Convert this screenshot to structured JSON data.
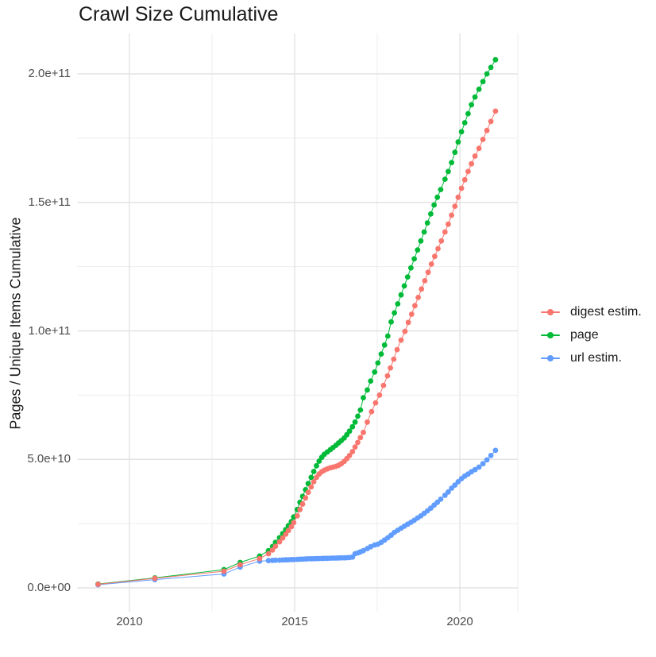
{
  "title": "Crawl Size Cumulative",
  "y_axis": {
    "title": "Pages / Unique Items Cumulative",
    "tick_labels": [
      "0.0e+00",
      "5.0e+10",
      "1.0e+11",
      "1.5e+11",
      "2.0e+11"
    ],
    "tick_values_billions": [
      0,
      50,
      100,
      150,
      200
    ]
  },
  "x_axis": {
    "tick_labels": [
      "2010",
      "2015",
      "2020"
    ],
    "tick_values": [
      2010,
      2015,
      2020
    ]
  },
  "legend": {
    "items": [
      {
        "label": "digest estim.",
        "color": "#F8766D"
      },
      {
        "label": "page",
        "color": "#00BA38"
      },
      {
        "label": "url estim.",
        "color": "#619CFF"
      }
    ]
  },
  "chart_data": {
    "type": "line",
    "marker": "filled-circle",
    "title": "Crawl Size Cumulative",
    "xlabel": "",
    "ylabel": "Pages / Unique Items Cumulative",
    "x_unit": "decimal year",
    "y_unit": "pages / unique items (billions, 1e9)",
    "xlim": [
      2008.4,
      2021.8
    ],
    "ylim": [
      0,
      216000000000.0
    ],
    "x_ticks": [
      2010,
      2015,
      2020
    ],
    "y_tick_labels": [
      "0.0e+00",
      "5.0e+10",
      "1.0e+11",
      "1.5e+11",
      "2.0e+11"
    ],
    "grid": "major and minor, light gray on white",
    "legend_position": "right",
    "draw_order": [
      "page",
      "url estim.",
      "digest estim."
    ],
    "series": [
      {
        "name": "digest estim.",
        "color": "#F8766D",
        "points_year_billions": [
          [
            2009.05,
            1.4
          ],
          [
            2010.77,
            3.7
          ],
          [
            2012.86,
            6.5
          ],
          [
            2013.35,
            9.0
          ],
          [
            2013.94,
            11.4
          ],
          [
            2014.21,
            13.3
          ],
          [
            2014.33,
            14.7
          ],
          [
            2014.42,
            16.2
          ],
          [
            2014.54,
            17.9
          ],
          [
            2014.64,
            19.4
          ],
          [
            2014.73,
            20.9
          ],
          [
            2014.81,
            22.3
          ],
          [
            2014.9,
            23.8
          ],
          [
            2014.97,
            25.4
          ],
          [
            2015.08,
            28.0
          ],
          [
            2015.16,
            30.5
          ],
          [
            2015.24,
            32.6
          ],
          [
            2015.33,
            35.0
          ],
          [
            2015.41,
            37.2
          ],
          [
            2015.5,
            39.3
          ],
          [
            2015.58,
            41.3
          ],
          [
            2015.66,
            43.0
          ],
          [
            2015.74,
            44.3
          ],
          [
            2015.82,
            45.2
          ],
          [
            2015.9,
            45.8
          ],
          [
            2015.99,
            46.3
          ],
          [
            2016.08,
            46.7
          ],
          [
            2016.16,
            47.0
          ],
          [
            2016.25,
            47.3
          ],
          [
            2016.33,
            47.7
          ],
          [
            2016.41,
            48.3
          ],
          [
            2016.5,
            49.2
          ],
          [
            2016.58,
            50.3
          ],
          [
            2016.66,
            51.5
          ],
          [
            2016.75,
            53.0
          ],
          [
            2016.83,
            54.8
          ],
          [
            2016.91,
            56.6
          ],
          [
            2016.99,
            58.5
          ],
          [
            2017.08,
            60.5
          ],
          [
            2017.2,
            64.5
          ],
          [
            2017.33,
            68.6
          ],
          [
            2017.45,
            72.0
          ],
          [
            2017.57,
            75.0
          ],
          [
            2017.69,
            78.8
          ],
          [
            2017.81,
            82.5
          ],
          [
            2017.9,
            85.6
          ],
          [
            2018.0,
            89.0
          ],
          [
            2018.1,
            92.7
          ],
          [
            2018.22,
            96.4
          ],
          [
            2018.34,
            99.8
          ],
          [
            2018.44,
            103.3
          ],
          [
            2018.54,
            106.5
          ],
          [
            2018.64,
            109.8
          ],
          [
            2018.74,
            113.0
          ],
          [
            2018.84,
            116.3
          ],
          [
            2018.94,
            119.5
          ],
          [
            2019.04,
            122.8
          ],
          [
            2019.14,
            126.0
          ],
          [
            2019.24,
            129.0
          ],
          [
            2019.34,
            132.0
          ],
          [
            2019.44,
            135.0
          ],
          [
            2019.55,
            138.5
          ],
          [
            2019.65,
            141.5
          ],
          [
            2019.75,
            145.0
          ],
          [
            2019.85,
            148.5
          ],
          [
            2019.95,
            152.0
          ],
          [
            2020.05,
            155.5
          ],
          [
            2020.15,
            158.8
          ],
          [
            2020.25,
            162.0
          ],
          [
            2020.35,
            165.0
          ],
          [
            2020.46,
            168.0
          ],
          [
            2020.58,
            171.0
          ],
          [
            2020.7,
            174.5
          ],
          [
            2020.82,
            178.0
          ],
          [
            2020.94,
            181.5
          ],
          [
            2021.08,
            185.5
          ]
        ]
      },
      {
        "name": "page",
        "color": "#00BA38",
        "points_year_billions": [
          [
            2009.05,
            1.5
          ],
          [
            2010.77,
            3.9
          ],
          [
            2012.86,
            7.1
          ],
          [
            2013.35,
            9.9
          ],
          [
            2013.94,
            12.4
          ],
          [
            2014.21,
            14.5
          ],
          [
            2014.33,
            16.1
          ],
          [
            2014.42,
            17.7
          ],
          [
            2014.54,
            19.5
          ],
          [
            2014.64,
            21.1
          ],
          [
            2014.73,
            22.7
          ],
          [
            2014.81,
            24.2
          ],
          [
            2014.9,
            25.8
          ],
          [
            2014.97,
            27.6
          ],
          [
            2015.08,
            30.5
          ],
          [
            2015.16,
            33.3
          ],
          [
            2015.24,
            35.6
          ],
          [
            2015.33,
            38.2
          ],
          [
            2015.41,
            40.6
          ],
          [
            2015.5,
            43.0
          ],
          [
            2015.58,
            45.3
          ],
          [
            2015.66,
            47.5
          ],
          [
            2015.74,
            49.3
          ],
          [
            2015.82,
            50.8
          ],
          [
            2015.9,
            52.0
          ],
          [
            2015.99,
            52.9
          ],
          [
            2016.08,
            53.8
          ],
          [
            2016.16,
            54.6
          ],
          [
            2016.25,
            55.5
          ],
          [
            2016.33,
            56.4
          ],
          [
            2016.41,
            57.3
          ],
          [
            2016.5,
            58.3
          ],
          [
            2016.58,
            59.6
          ],
          [
            2016.66,
            61.0
          ],
          [
            2016.75,
            62.7
          ],
          [
            2016.83,
            64.5
          ],
          [
            2016.91,
            66.8
          ],
          [
            2016.99,
            69.2
          ],
          [
            2017.08,
            74.0
          ],
          [
            2017.2,
            77.0
          ],
          [
            2017.3,
            80.5
          ],
          [
            2017.42,
            84.0
          ],
          [
            2017.52,
            87.5
          ],
          [
            2017.62,
            91.0
          ],
          [
            2017.72,
            94.5
          ],
          [
            2017.82,
            98.0
          ],
          [
            2017.92,
            103.5
          ],
          [
            2018.02,
            107.0
          ],
          [
            2018.12,
            110.5
          ],
          [
            2018.22,
            114.0
          ],
          [
            2018.32,
            117.5
          ],
          [
            2018.42,
            121.0
          ],
          [
            2018.52,
            124.5
          ],
          [
            2018.62,
            128.0
          ],
          [
            2018.72,
            131.5
          ],
          [
            2018.82,
            135.0
          ],
          [
            2018.92,
            138.5
          ],
          [
            2019.02,
            142.0
          ],
          [
            2019.12,
            145.5
          ],
          [
            2019.22,
            149.0
          ],
          [
            2019.32,
            152.0
          ],
          [
            2019.42,
            155.0
          ],
          [
            2019.55,
            159.0
          ],
          [
            2019.65,
            162.0
          ],
          [
            2019.75,
            165.5
          ],
          [
            2019.85,
            169.5
          ],
          [
            2019.95,
            173.5
          ],
          [
            2020.05,
            177.5
          ],
          [
            2020.15,
            181.0
          ],
          [
            2020.25,
            184.5
          ],
          [
            2020.35,
            188.0
          ],
          [
            2020.46,
            191.0
          ],
          [
            2020.58,
            194.0
          ],
          [
            2020.7,
            197.0
          ],
          [
            2020.82,
            200.0
          ],
          [
            2020.94,
            202.5
          ],
          [
            2021.08,
            205.5
          ]
        ]
      },
      {
        "name": "url estim.",
        "color": "#619CFF",
        "points_year_billions": [
          [
            2009.05,
            1.2
          ],
          [
            2010.77,
            3.2
          ],
          [
            2012.86,
            5.4
          ],
          [
            2013.35,
            8.1
          ],
          [
            2013.94,
            10.4
          ],
          [
            2014.21,
            10.6
          ],
          [
            2014.33,
            10.7
          ],
          [
            2014.42,
            10.75
          ],
          [
            2014.54,
            10.8
          ],
          [
            2014.64,
            10.85
          ],
          [
            2014.73,
            10.9
          ],
          [
            2014.81,
            10.95
          ],
          [
            2014.9,
            11.0
          ],
          [
            2014.97,
            11.0
          ],
          [
            2015.08,
            11.1
          ],
          [
            2015.16,
            11.15
          ],
          [
            2015.24,
            11.2
          ],
          [
            2015.33,
            11.25
          ],
          [
            2015.41,
            11.3
          ],
          [
            2015.5,
            11.3
          ],
          [
            2015.58,
            11.35
          ],
          [
            2015.66,
            11.4
          ],
          [
            2015.74,
            11.4
          ],
          [
            2015.82,
            11.45
          ],
          [
            2015.9,
            11.5
          ],
          [
            2015.99,
            11.5
          ],
          [
            2016.08,
            11.55
          ],
          [
            2016.16,
            11.6
          ],
          [
            2016.25,
            11.6
          ],
          [
            2016.33,
            11.65
          ],
          [
            2016.41,
            11.7
          ],
          [
            2016.5,
            11.7
          ],
          [
            2016.58,
            11.75
          ],
          [
            2016.66,
            11.8
          ],
          [
            2016.75,
            12.0
          ],
          [
            2016.83,
            13.3
          ],
          [
            2016.91,
            13.6
          ],
          [
            2016.99,
            14.0
          ],
          [
            2017.08,
            14.5
          ],
          [
            2017.2,
            15.3
          ],
          [
            2017.3,
            16.0
          ],
          [
            2017.42,
            16.7
          ],
          [
            2017.52,
            17.0
          ],
          [
            2017.62,
            17.7
          ],
          [
            2017.72,
            18.6
          ],
          [
            2017.82,
            19.5
          ],
          [
            2017.92,
            20.5
          ],
          [
            2018.02,
            21.6
          ],
          [
            2018.12,
            22.4
          ],
          [
            2018.22,
            23.2
          ],
          [
            2018.32,
            24.0
          ],
          [
            2018.42,
            24.8
          ],
          [
            2018.52,
            25.5
          ],
          [
            2018.62,
            26.3
          ],
          [
            2018.72,
            27.2
          ],
          [
            2018.82,
            28.0
          ],
          [
            2018.92,
            29.0
          ],
          [
            2019.02,
            30.0
          ],
          [
            2019.12,
            31.0
          ],
          [
            2019.22,
            32.2
          ],
          [
            2019.32,
            33.3
          ],
          [
            2019.42,
            34.5
          ],
          [
            2019.55,
            36.0
          ],
          [
            2019.65,
            37.3
          ],
          [
            2019.75,
            38.8
          ],
          [
            2019.85,
            40.0
          ],
          [
            2019.95,
            41.3
          ],
          [
            2020.05,
            42.5
          ],
          [
            2020.15,
            43.5
          ],
          [
            2020.25,
            44.3
          ],
          [
            2020.35,
            45.2
          ],
          [
            2020.46,
            46.0
          ],
          [
            2020.58,
            47.0
          ],
          [
            2020.7,
            48.3
          ],
          [
            2020.82,
            49.8
          ],
          [
            2020.94,
            51.5
          ],
          [
            2021.08,
            53.5
          ]
        ]
      }
    ]
  }
}
